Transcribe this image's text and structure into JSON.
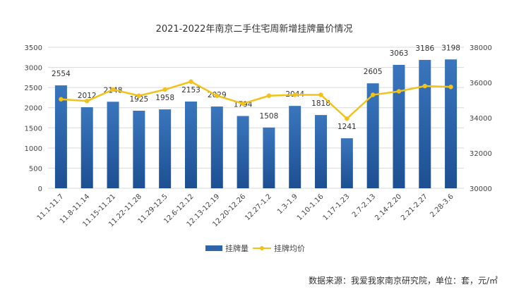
{
  "chart_data": {
    "type": "bar",
    "title": "2021-2022年南京二手住宅周新增挂牌量价情况",
    "categories": [
      "11.1-11.7",
      "11.8-11.14",
      "11.15-11.21",
      "11.22-11.28",
      "11.29-12.5",
      "12.6-12.12",
      "12.13-12.19",
      "12.20-12.26",
      "12.27-1.2",
      "1.3-1.9",
      "1.10-1.16",
      "1.17-1.23",
      "2.7-2.13",
      "2.14-2.20",
      "2.21-2.27",
      "2.28-3.6"
    ],
    "series": [
      {
        "name": "挂牌量",
        "type": "bar",
        "axis": "left",
        "color": "#2e64a8",
        "values": [
          2554,
          2012,
          2148,
          1925,
          1958,
          2153,
          2029,
          1794,
          1508,
          2044,
          1818,
          1241,
          2605,
          3063,
          3186,
          3198
        ]
      },
      {
        "name": "挂牌均价",
        "type": "line",
        "axis": "right",
        "color": "#f2c21b",
        "values": [
          35050,
          34950,
          35600,
          35250,
          35600,
          36050,
          35250,
          34800,
          35250,
          35300,
          35300,
          33950,
          35300,
          35500,
          35800,
          35750
        ]
      }
    ],
    "ylim_left": [
      0,
      3500
    ],
    "yticks_left": [
      0,
      500,
      1000,
      1500,
      2000,
      2500,
      3000,
      3500
    ],
    "ylim_right": [
      30000,
      38000
    ],
    "yticks_right": [
      30000,
      32000,
      34000,
      36000,
      38000
    ],
    "grid": true,
    "legend": "bottom-center"
  },
  "source_note": "数据来源：我爱我家南京研究院，单位：套，元/㎡"
}
